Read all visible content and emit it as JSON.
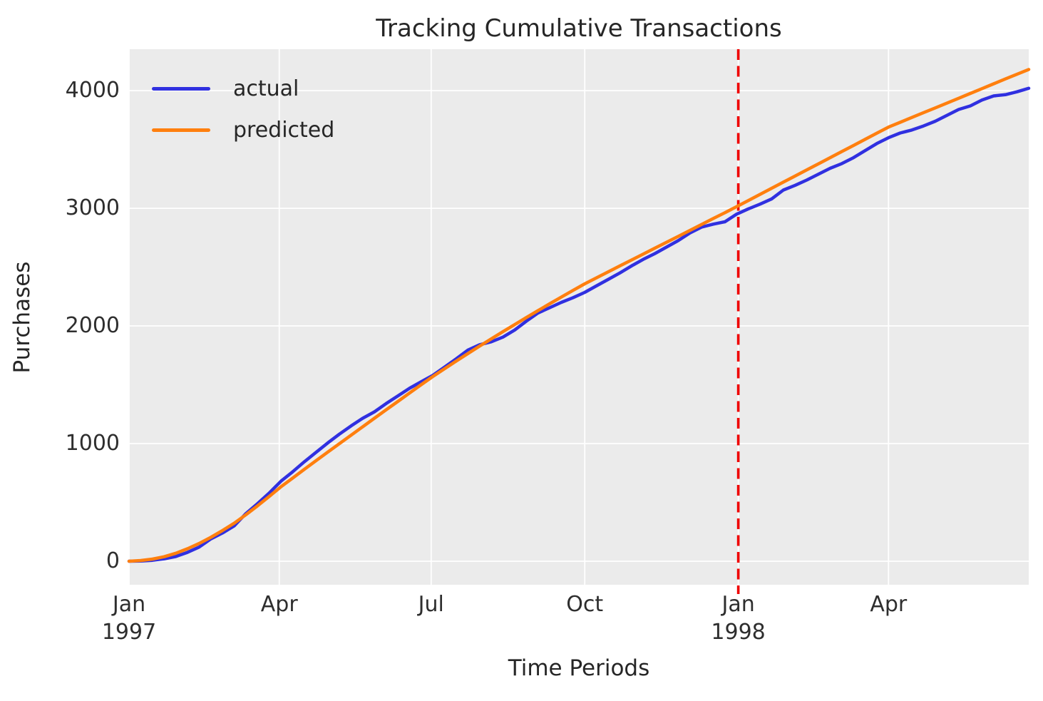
{
  "chart_data": {
    "type": "line",
    "title": "Tracking Cumulative Transactions",
    "xlabel": "Time Periods",
    "ylabel": "Purchases",
    "x_description": "weekly periods, week 0 = Jan 1997 through ~week 77 (mid 1998)",
    "xlim": [
      0,
      77
    ],
    "ylim": [
      -200,
      4352
    ],
    "grid": true,
    "plot_bg": "#ebebeb",
    "grid_color": "#ffffff",
    "text_color": "#262626",
    "xticks": [
      {
        "week": 0,
        "lines": [
          "Jan",
          "1997"
        ]
      },
      {
        "week": 12.857,
        "lines": [
          "Apr"
        ]
      },
      {
        "week": 25.857,
        "lines": [
          "Jul"
        ]
      },
      {
        "week": 39,
        "lines": [
          "Oct"
        ]
      },
      {
        "week": 52.143,
        "lines": [
          "Jan",
          "1998"
        ]
      },
      {
        "week": 65,
        "lines": [
          "Apr"
        ]
      }
    ],
    "yticks": [
      0,
      1000,
      2000,
      3000,
      4000
    ],
    "vline": {
      "week": 52.143,
      "color": "#ef0000",
      "style": "dashed"
    },
    "legend": {
      "position": "upper left",
      "frame": false
    },
    "series": [
      {
        "name": "actual",
        "color": "#3030e0",
        "values": [
          0,
          2,
          8,
          20,
          40,
          75,
          120,
          190,
          240,
          300,
          405,
          490,
          580,
          680,
          760,
          845,
          925,
          1005,
          1080,
          1150,
          1215,
          1270,
          1340,
          1405,
          1470,
          1525,
          1580,
          1650,
          1720,
          1795,
          1840,
          1865,
          1905,
          1965,
          2040,
          2110,
          2155,
          2200,
          2240,
          2285,
          2340,
          2395,
          2450,
          2510,
          2565,
          2615,
          2670,
          2725,
          2790,
          2840,
          2865,
          2885,
          2950,
          2995,
          3035,
          3080,
          3155,
          3195,
          3240,
          3290,
          3340,
          3380,
          3430,
          3490,
          3550,
          3600,
          3640,
          3665,
          3700,
          3740,
          3790,
          3840,
          3870,
          3920,
          3955,
          3965,
          3990,
          4020
        ]
      },
      {
        "name": "predicted",
        "color": "#ff7f0e",
        "values": [
          0,
          6,
          18,
          38,
          68,
          106,
          151,
          203,
          261,
          323,
          395,
          471,
          551,
          633,
          707,
          781,
          854,
          927,
          999,
          1071,
          1143,
          1215,
          1287,
          1358,
          1429,
          1500,
          1570,
          1636,
          1701,
          1765,
          1828,
          1890,
          1951,
          2011,
          2071,
          2130,
          2188,
          2245,
          2302,
          2358,
          2409,
          2459,
          2510,
          2560,
          2610,
          2661,
          2711,
          2761,
          2812,
          2862,
          2913,
          2963,
          3014,
          3066,
          3118,
          3170,
          3222,
          3274,
          3326,
          3378,
          3430,
          3482,
          3534,
          3586,
          3638,
          3690,
          3731,
          3772,
          3813,
          3853,
          3894,
          3935,
          3976,
          4017,
          4058,
          4099,
          4139,
          4180
        ]
      }
    ]
  }
}
